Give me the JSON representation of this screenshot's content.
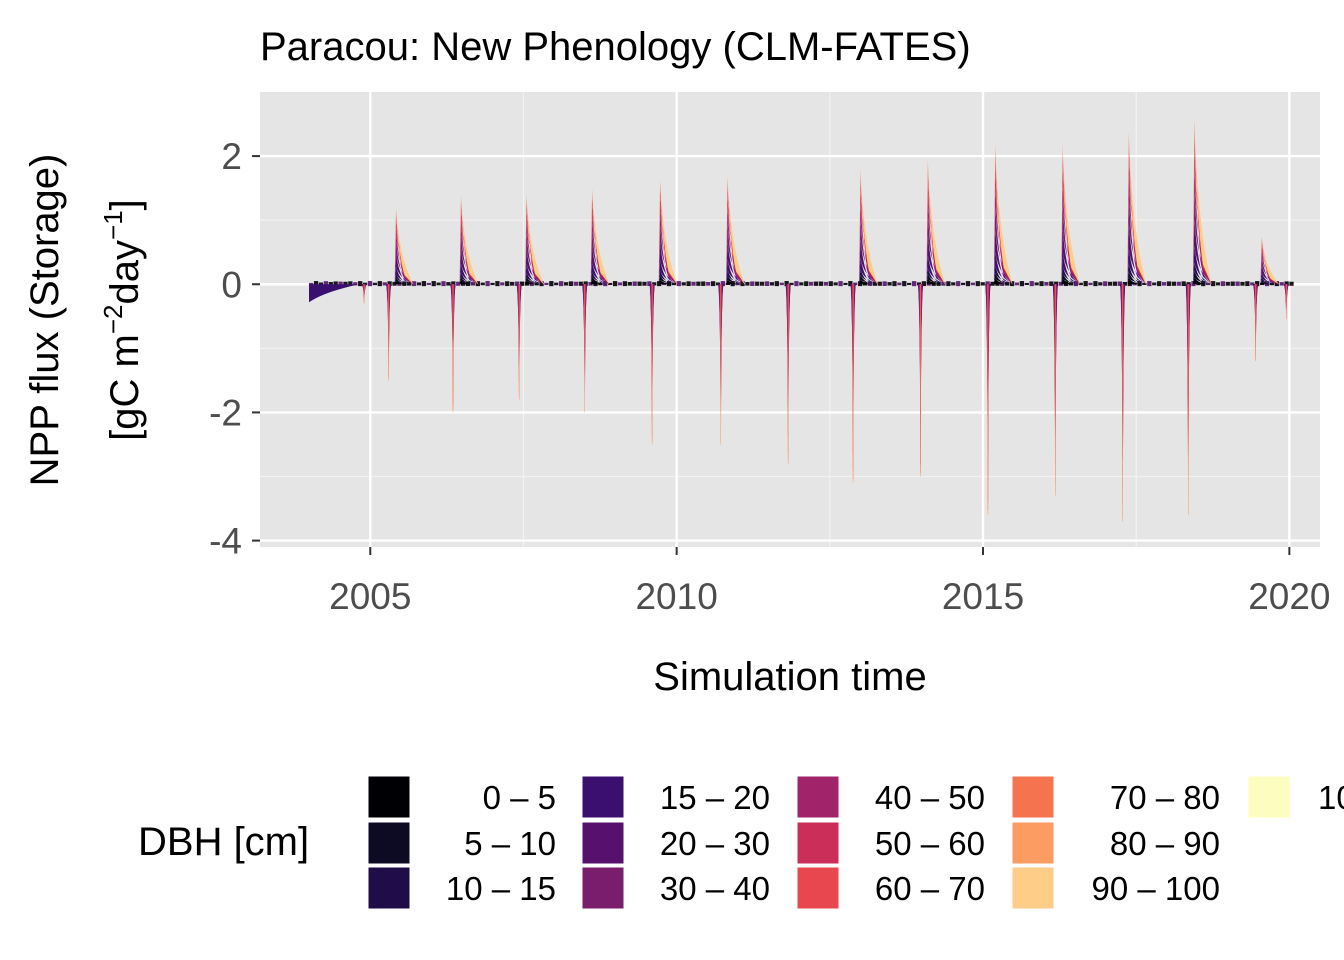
{
  "chart_data": {
    "type": "area",
    "title": "Paracou: New Phenology (CLM-FATES)",
    "xlabel": "Simulation time",
    "ylabel_line1": "NPP flux (Storage)",
    "ylabel_line2": "[gC m",
    "ylabel_sup1": "−2",
    "ylabel_mid": "day",
    "ylabel_sup2": "−1",
    "ylabel_end": "]",
    "xlim": [
      2003.2,
      2020.5
    ],
    "ylim": [
      -4.1,
      3.0
    ],
    "x_ticks": [
      "2005",
      "2010",
      "2015",
      "2020"
    ],
    "x_tick_values": [
      2005,
      2010,
      2015,
      2020
    ],
    "y_ticks": [
      "-4",
      "-2",
      "0",
      "2"
    ],
    "y_tick_values": [
      -4,
      -2,
      0,
      2
    ],
    "grid": true,
    "legend_position": "bottom",
    "legend": {
      "title": "DBH [cm]",
      "entries": [
        {
          "label": "0 – 5",
          "color": "#000004"
        },
        {
          "label": "5 – 10",
          "color": "#0d0a24"
        },
        {
          "label": "10 – 15",
          "color": "#1f0c48"
        },
        {
          "label": "15 – 20",
          "color": "#3b0f70"
        },
        {
          "label": "20 – 30",
          "color": "#57106e"
        },
        {
          "label": "30 – 40",
          "color": "#7a1d6d"
        },
        {
          "label": "40 – 50",
          "color": "#a1236a"
        },
        {
          "label": "50 – 60",
          "color": "#cc2e5a"
        },
        {
          "label": "60 – 70",
          "color": "#e9474f"
        },
        {
          "label": "70 – 80",
          "color": "#f5734f"
        },
        {
          "label": "80 – 90",
          "color": "#fc9b62"
        },
        {
          "label": "90 – 100",
          "color": "#fecd87"
        },
        {
          "label": "10",
          "color": "#fcfdbf"
        }
      ]
    },
    "events": {
      "positive_peaks": [
        {
          "x": 2005.42,
          "y": 1.2
        },
        {
          "x": 2006.48,
          "y": 1.4
        },
        {
          "x": 2007.55,
          "y": 1.4
        },
        {
          "x": 2008.62,
          "y": 1.5
        },
        {
          "x": 2009.73,
          "y": 1.65
        },
        {
          "x": 2010.83,
          "y": 1.7
        },
        {
          "x": 2013.0,
          "y": 1.8
        },
        {
          "x": 2014.1,
          "y": 1.95
        },
        {
          "x": 2015.2,
          "y": 2.2
        },
        {
          "x": 2016.3,
          "y": 2.2
        },
        {
          "x": 2017.38,
          "y": 2.4
        },
        {
          "x": 2018.45,
          "y": 2.6
        },
        {
          "x": 2019.55,
          "y": 0.75
        }
      ],
      "negative_peaks": [
        {
          "x": 2004.9,
          "y": -0.3
        },
        {
          "x": 2005.3,
          "y": -1.5
        },
        {
          "x": 2006.35,
          "y": -2.0
        },
        {
          "x": 2007.43,
          "y": -1.8
        },
        {
          "x": 2008.5,
          "y": -2.0
        },
        {
          "x": 2009.6,
          "y": -2.5
        },
        {
          "x": 2010.72,
          "y": -2.5
        },
        {
          "x": 2011.82,
          "y": -2.8
        },
        {
          "x": 2012.88,
          "y": -3.1
        },
        {
          "x": 2013.98,
          "y": -3.0
        },
        {
          "x": 2015.08,
          "y": -3.6
        },
        {
          "x": 2016.18,
          "y": -3.3
        },
        {
          "x": 2017.28,
          "y": -3.7
        },
        {
          "x": 2018.35,
          "y": -3.6
        },
        {
          "x": 2019.45,
          "y": -1.2
        },
        {
          "x": 2019.95,
          "y": -0.55
        }
      ]
    }
  }
}
